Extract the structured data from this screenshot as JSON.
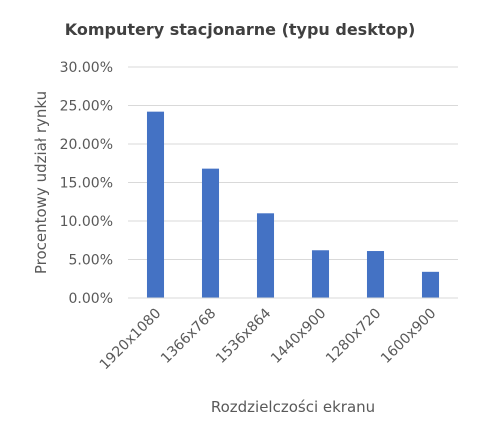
{
  "chart_data": {
    "type": "bar",
    "title": "Komputery stacjonarne (typu desktop)",
    "xlabel": "Rozdzielczości ekranu",
    "ylabel": "Procentowy udział rynku",
    "categories": [
      "1920x1080",
      "1366x768",
      "1536x864",
      "1440x900",
      "1280x720",
      "1600x900"
    ],
    "series": [
      {
        "values": [
          24.2,
          16.8,
          11.0,
          6.2,
          6.1,
          3.4
        ],
        "color": "#4472c4"
      }
    ],
    "ylim": [
      0,
      30
    ],
    "yticks": [
      "0.00%",
      "5.00%",
      "10.00%",
      "15.00%",
      "20.00%",
      "25.00%",
      "30.00%"
    ],
    "ytick_values": [
      0,
      5,
      10,
      15,
      20,
      25,
      30
    ],
    "grid": true,
    "legend": "none"
  }
}
